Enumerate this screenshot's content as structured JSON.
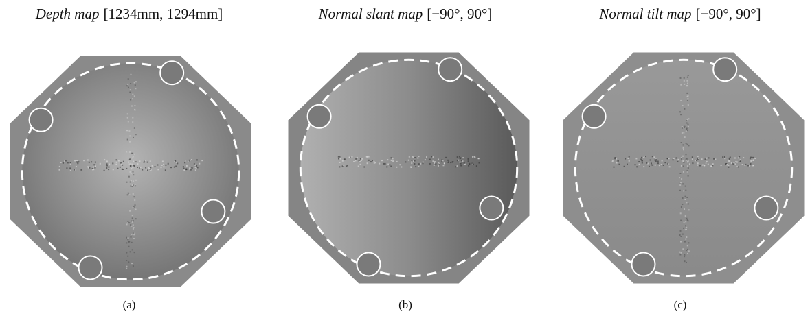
{
  "panels": [
    {
      "title": "Depth map",
      "range": "[1234mm, 1294mm]",
      "caption": "(a)"
    },
    {
      "title": "Normal slant map",
      "range": "[−90°, 90°]",
      "caption": "(b)"
    },
    {
      "title": "Normal tilt map",
      "range": "[−90°, 90°]",
      "caption": "(c)"
    }
  ]
}
